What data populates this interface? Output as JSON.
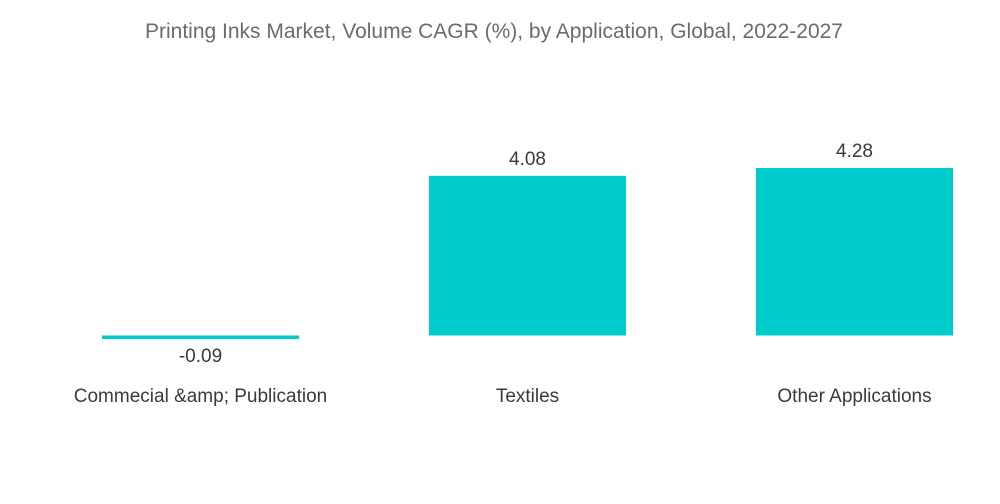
{
  "colors": {
    "bar": "#00cccc",
    "title": "#6b6b6b",
    "label": "#3a3a3a"
  },
  "chart_data": {
    "type": "bar",
    "title": "Printing Inks Market, Volume CAGR (%), by Application, Global, 2022-2027",
    "categories": [
      "Commecial &amp; Publication",
      "Textiles",
      "Other Applications"
    ],
    "values": [
      -0.09,
      4.08,
      4.28
    ],
    "value_labels": [
      "-0.09",
      "4.08",
      "4.28"
    ],
    "xlabel": "",
    "ylabel": "",
    "ylim": [
      -0.09,
      4.28
    ],
    "grid": false,
    "legend": "none"
  }
}
